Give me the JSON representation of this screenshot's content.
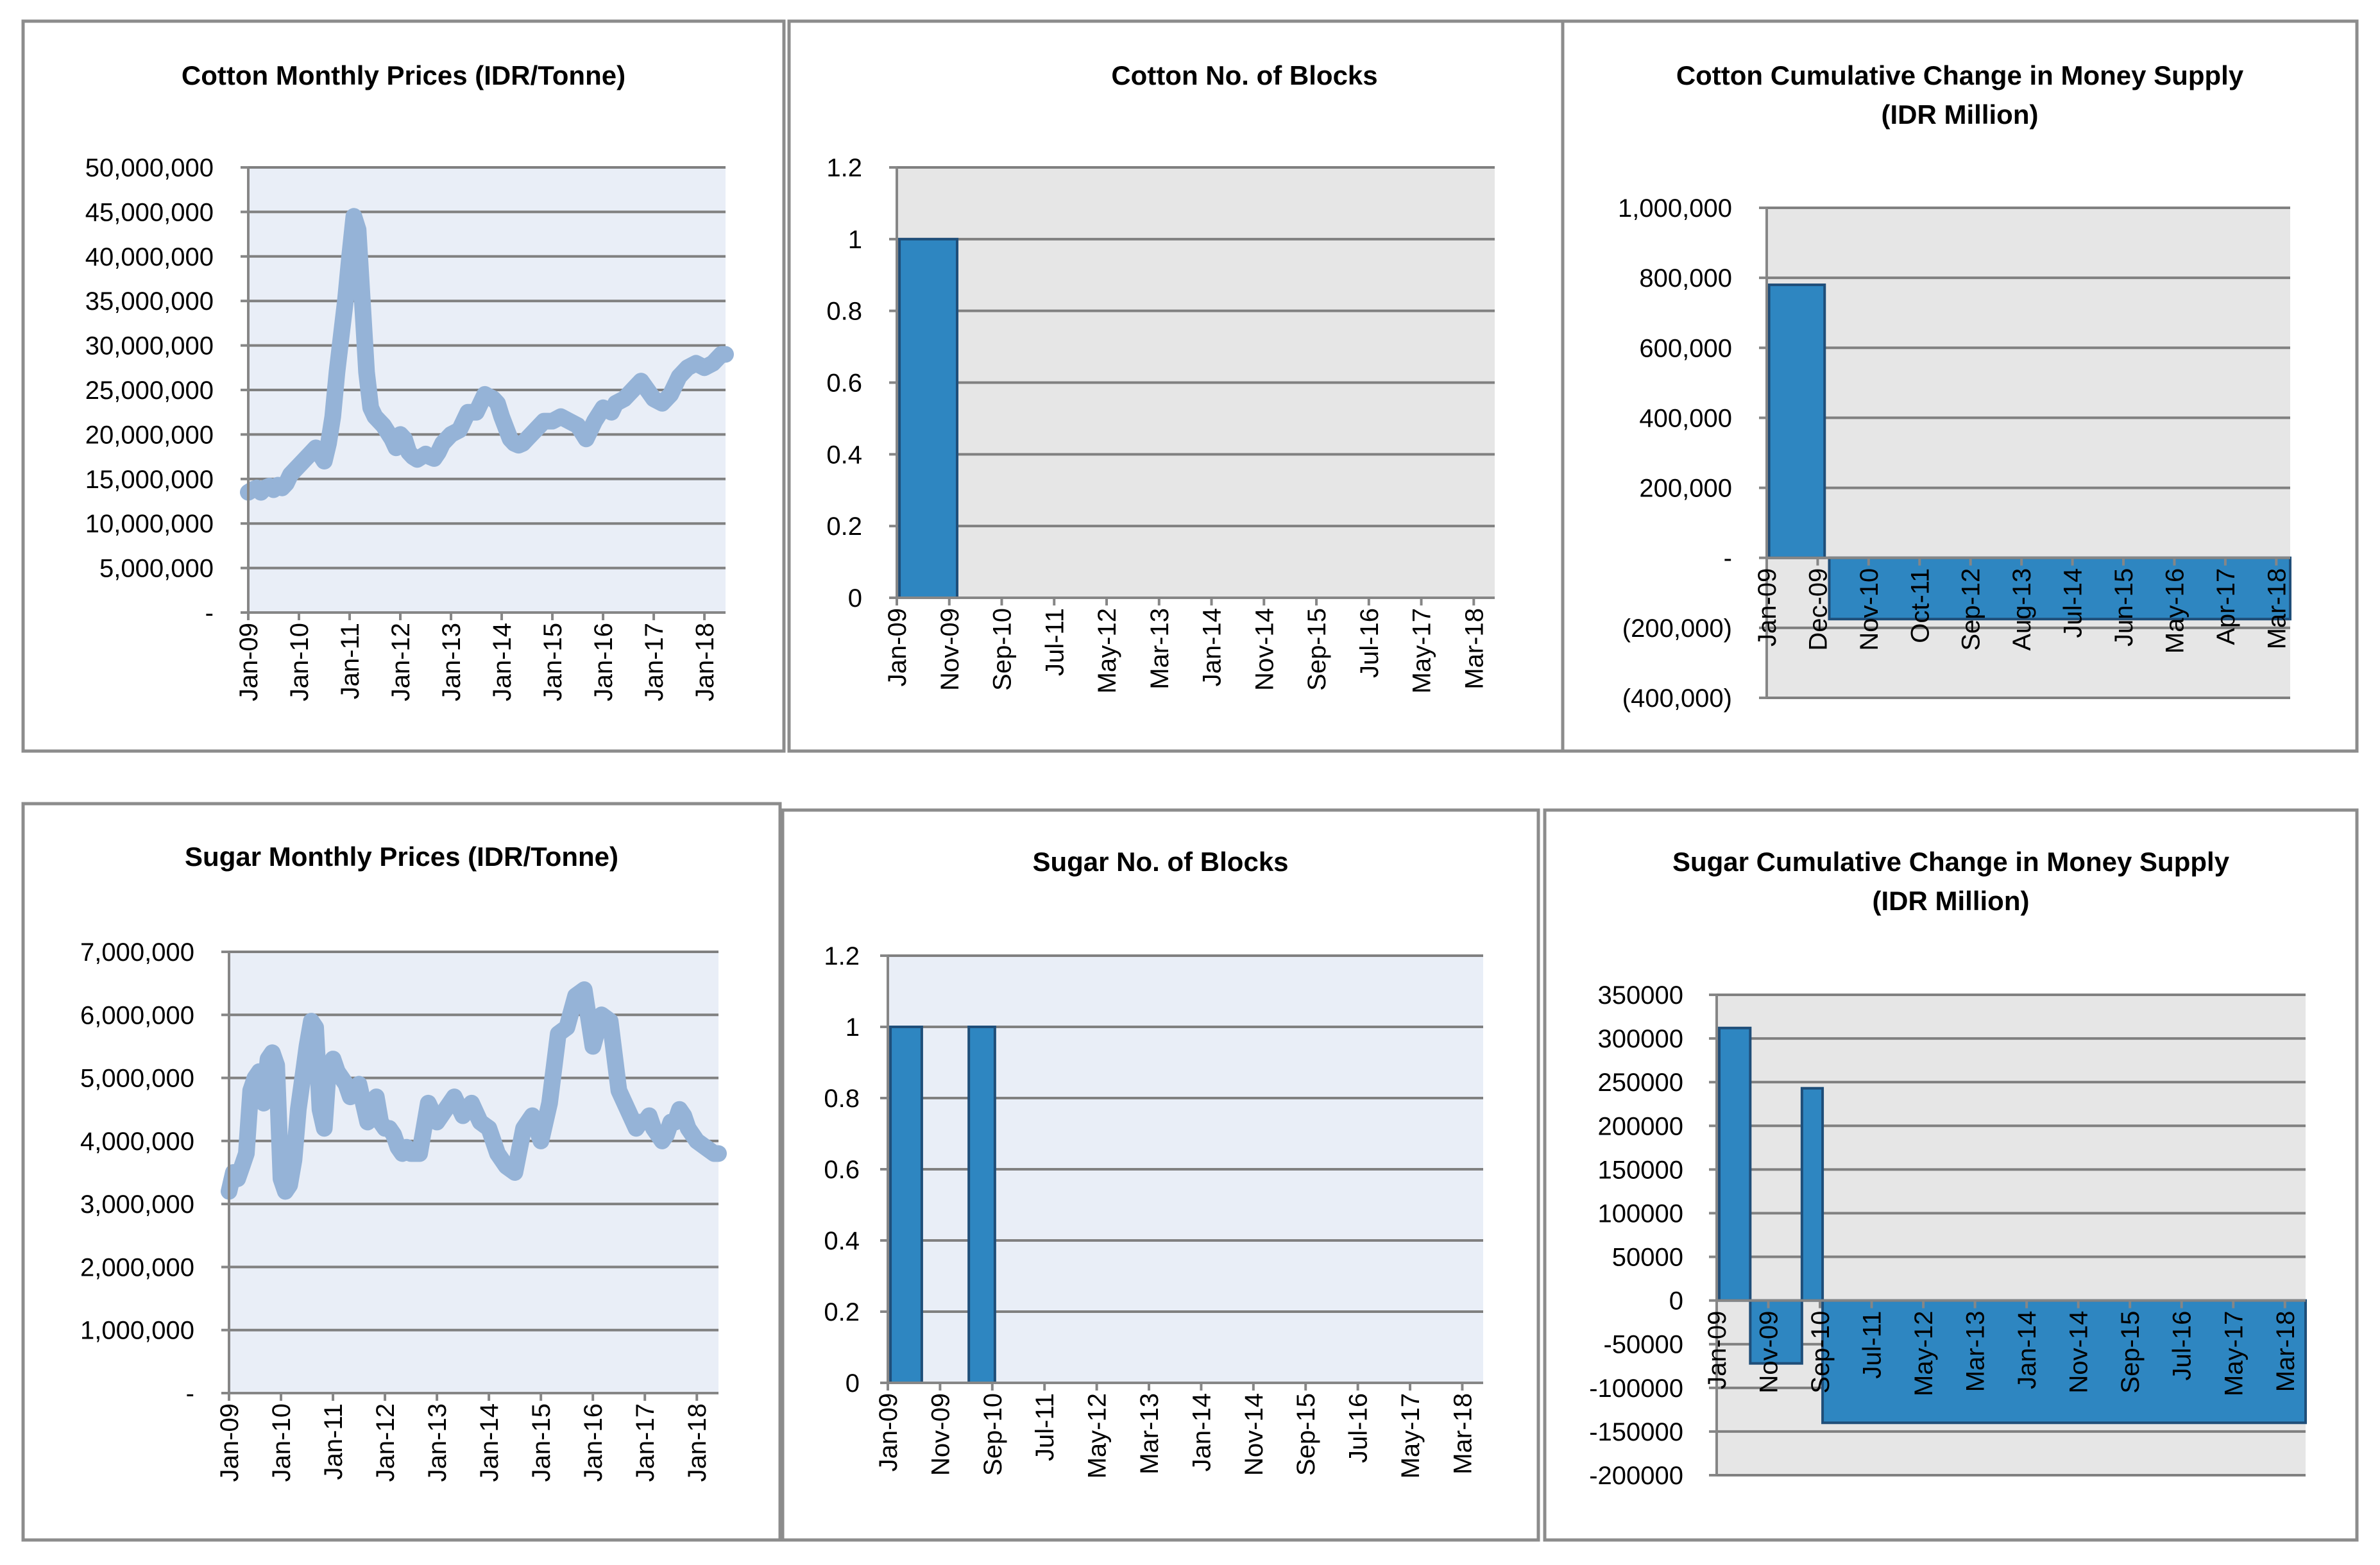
{
  "colors": {
    "line": "#95B3D7",
    "bar_fill": "#2E86C1",
    "bar_edge": "#1F4E79",
    "grid": "#808080",
    "axis": "#868686",
    "panel_border": "#8C8C8C",
    "plot_bg_light": "#E9EEF7",
    "plot_bg_grey": "#E6E6E6"
  },
  "chart_data": [
    {
      "id": "cotton-prices",
      "type": "line",
      "title": "Cotton Monthly Prices (IDR/Tonne)",
      "xlabel": "",
      "ylabel": "",
      "ylim": [
        0,
        50000000
      ],
      "yticks": [
        0,
        5000000,
        10000000,
        15000000,
        20000000,
        25000000,
        30000000,
        35000000,
        40000000,
        45000000,
        50000000
      ],
      "ytick_labels": [
        "-",
        "5,000,000",
        "10,000,000",
        "15,000,000",
        "20,000,000",
        "25,000,000",
        "30,000,000",
        "35,000,000",
        "40,000,000",
        "45,000,000",
        "50,000,000"
      ],
      "xlim": [
        0,
        113
      ],
      "xticks": [
        0,
        12,
        24,
        36,
        48,
        60,
        72,
        84,
        96,
        108
      ],
      "xtick_labels": [
        "Jan-09",
        "Jan-10",
        "Jan-11",
        "Jan-12",
        "Jan-13",
        "Jan-14",
        "Jan-15",
        "Jan-16",
        "Jan-17",
        "Jan-18"
      ],
      "x": [
        0,
        1,
        2,
        3,
        4,
        5,
        6,
        7,
        8,
        9,
        10,
        11,
        12,
        14,
        16,
        18,
        19,
        20,
        21,
        22,
        23,
        24,
        25,
        26,
        27,
        28,
        29,
        30,
        32,
        34,
        35,
        36,
        37,
        38,
        39,
        40,
        42,
        43,
        44,
        45,
        46,
        48,
        50,
        51,
        52,
        54,
        56,
        58,
        59,
        60,
        62,
        63,
        64,
        65,
        66,
        68,
        70,
        72,
        74,
        76,
        78,
        80,
        82,
        84,
        86,
        87,
        89,
        91,
        93,
        96,
        98,
        100,
        102,
        104,
        106,
        108,
        110,
        112,
        113
      ],
      "values": [
        13500000,
        13800000,
        14000000,
        13500000,
        14000000,
        14200000,
        13800000,
        14300000,
        14000000,
        14500000,
        15500000,
        16000000,
        16500000,
        17500000,
        18500000,
        17000000,
        19000000,
        22000000,
        27000000,
        31000000,
        35000000,
        40000000,
        44500000,
        43000000,
        35000000,
        27000000,
        23000000,
        22000000,
        21000000,
        19500000,
        18500000,
        20000000,
        19500000,
        18000000,
        17500000,
        17200000,
        17800000,
        17500000,
        17300000,
        18000000,
        19000000,
        20000000,
        20500000,
        21500000,
        22500000,
        22500000,
        24500000,
        24000000,
        23500000,
        22000000,
        19500000,
        19000000,
        18800000,
        19000000,
        19500000,
        20500000,
        21500000,
        21500000,
        22000000,
        21500000,
        21000000,
        19500000,
        21500000,
        23000000,
        22500000,
        23500000,
        24000000,
        25000000,
        26000000,
        24000000,
        23500000,
        24500000,
        26500000,
        27500000,
        28000000,
        27500000,
        28000000,
        29000000,
        29000000
      ]
    },
    {
      "id": "cotton-blocks",
      "type": "bar",
      "title": "Cotton No. of Blocks",
      "xlabel": "",
      "ylabel": "",
      "ylim": [
        0,
        1.2
      ],
      "yticks": [
        0,
        0.2,
        0.4,
        0.6,
        0.8,
        1,
        1.2
      ],
      "ytick_labels": [
        "0",
        "0.2",
        "0.4",
        "0.6",
        "0.8",
        "1",
        "1.2"
      ],
      "xlim": [
        0,
        114
      ],
      "xticks": [
        0,
        10,
        20,
        30,
        40,
        50,
        60,
        70,
        80,
        90,
        100,
        110
      ],
      "xtick_labels": [
        "Jan-09",
        "Nov-09",
        "Sep-10",
        "Jul-11",
        "May-12",
        "Mar-13",
        "Jan-14",
        "Nov-14",
        "Sep-15",
        "Jul-16",
        "May-17",
        "Mar-18"
      ],
      "bars": [
        {
          "x0": 0.5,
          "x1": 11.5,
          "value": 1
        }
      ]
    },
    {
      "id": "cotton-money",
      "type": "bar",
      "title": "Cotton Cumulative Change in Money Supply",
      "subtitle": "(IDR Million)",
      "xlabel": "",
      "ylabel": "",
      "ylim": [
        -400000,
        1000000
      ],
      "yticks": [
        -400000,
        -200000,
        0,
        200000,
        400000,
        600000,
        800000,
        1000000
      ],
      "ytick_labels": [
        "(400,000)",
        "(200,000)",
        "-",
        "200,000",
        "400,000",
        "600,000",
        "800,000",
        "1,000,000"
      ],
      "xlim": [
        0,
        113
      ],
      "xticks": [
        0,
        11,
        22,
        33,
        44,
        55,
        66,
        77,
        88,
        99,
        110
      ],
      "xtick_labels": [
        "Jan-09",
        "Dec-09",
        "Nov-10",
        "Oct-11",
        "Sep-12",
        "Aug-13",
        "Jul-14",
        "Jun-15",
        "May-16",
        "Apr-17",
        "Mar-18"
      ],
      "bars": [
        {
          "x0": 0.5,
          "x1": 12.5,
          "value": 780000
        },
        {
          "x0": 13.5,
          "x1": 113,
          "value": -175000
        }
      ]
    },
    {
      "id": "sugar-prices",
      "type": "line",
      "title": "Sugar Monthly Prices (IDR/Tonne)",
      "xlabel": "",
      "ylabel": "",
      "ylim": [
        0,
        7000000
      ],
      "yticks": [
        0,
        1000000,
        2000000,
        3000000,
        4000000,
        5000000,
        6000000,
        7000000
      ],
      "ytick_labels": [
        "-",
        "1,000,000",
        "2,000,000",
        "3,000,000",
        "4,000,000",
        "5,000,000",
        "6,000,000",
        "7,000,000"
      ],
      "xlim": [
        0,
        113
      ],
      "xticks": [
        0,
        12,
        24,
        36,
        48,
        60,
        72,
        84,
        96,
        108
      ],
      "xtick_labels": [
        "Jan-09",
        "Jan-10",
        "Jan-11",
        "Jan-12",
        "Jan-13",
        "Jan-14",
        "Jan-15",
        "Jan-16",
        "Jan-17",
        "Jan-18"
      ],
      "x": [
        0,
        1,
        2,
        3,
        4,
        5,
        6,
        7,
        8,
        9,
        10,
        11,
        12,
        13,
        14,
        15,
        16,
        17,
        18,
        19,
        20,
        21,
        22,
        23,
        24,
        25,
        26,
        27,
        28,
        29,
        30,
        31,
        32,
        33,
        34,
        35,
        36,
        37,
        38,
        39,
        40,
        41,
        42,
        44,
        46,
        48,
        50,
        52,
        54,
        56,
        58,
        60,
        62,
        64,
        66,
        68,
        70,
        72,
        74,
        76,
        78,
        80,
        82,
        84,
        86,
        88,
        90,
        92,
        94,
        95,
        96,
        97,
        98,
        99,
        100,
        101,
        102,
        103,
        104,
        105,
        106,
        108,
        110,
        112,
        113
      ],
      "values": [
        3200000,
        3500000,
        3400000,
        3600000,
        3800000,
        4800000,
        5000000,
        5100000,
        4600000,
        5300000,
        5400000,
        5200000,
        3400000,
        3200000,
        3300000,
        3700000,
        4500000,
        5000000,
        5500000,
        5900000,
        5800000,
        4500000,
        4200000,
        5200000,
        5300000,
        5100000,
        5000000,
        4900000,
        4700000,
        4800000,
        4900000,
        4600000,
        4300000,
        4400000,
        4700000,
        4300000,
        4200000,
        4200000,
        4100000,
        3900000,
        3800000,
        3900000,
        3800000,
        3800000,
        4600000,
        4300000,
        4500000,
        4700000,
        4400000,
        4600000,
        4300000,
        4200000,
        3800000,
        3600000,
        3500000,
        4200000,
        4400000,
        4000000,
        4600000,
        5700000,
        5800000,
        6300000,
        6400000,
        5500000,
        6000000,
        5900000,
        4800000,
        4500000,
        4200000,
        4300000,
        4300000,
        4400000,
        4200000,
        4100000,
        4000000,
        4100000,
        4300000,
        4300000,
        4500000,
        4400000,
        4200000,
        4000000,
        3900000,
        3800000,
        3800000
      ]
    },
    {
      "id": "sugar-blocks",
      "type": "bar",
      "title": "Sugar No. of Blocks",
      "xlabel": "",
      "ylabel": "",
      "ylim": [
        0,
        1.2
      ],
      "yticks": [
        0,
        0.2,
        0.4,
        0.6,
        0.8,
        1,
        1.2
      ],
      "ytick_labels": [
        "0",
        "0.2",
        "0.4",
        "0.6",
        "0.8",
        "1",
        "1.2"
      ],
      "xlim": [
        0,
        114
      ],
      "xticks": [
        0,
        10,
        20,
        30,
        40,
        50,
        60,
        70,
        80,
        90,
        100,
        110
      ],
      "xtick_labels": [
        "Jan-09",
        "Nov-09",
        "Sep-10",
        "Jul-11",
        "May-12",
        "Mar-13",
        "Jan-14",
        "Nov-14",
        "Sep-15",
        "Jul-16",
        "May-17",
        "Mar-18"
      ],
      "bars": [
        {
          "x0": 0.5,
          "x1": 6.5,
          "value": 1
        },
        {
          "x0": 15.5,
          "x1": 20.5,
          "value": 1
        }
      ]
    },
    {
      "id": "sugar-money",
      "type": "bar",
      "title": "Sugar Cumulative Change in Money Supply",
      "subtitle": "(IDR Million)",
      "xlabel": "",
      "ylabel": "",
      "ylim": [
        -200000,
        350000
      ],
      "yticks": [
        -200000,
        -150000,
        -100000,
        -50000,
        0,
        50000,
        100000,
        150000,
        200000,
        250000,
        300000,
        350000
      ],
      "ytick_labels": [
        "-200000",
        "-150000",
        "-100000",
        "-50000",
        "0",
        "50000",
        "100000",
        "150000",
        "200000",
        "250000",
        "300000",
        "350000"
      ],
      "xlim": [
        0,
        114
      ],
      "xticks": [
        0,
        10,
        20,
        30,
        40,
        50,
        60,
        70,
        80,
        90,
        100,
        110
      ],
      "xtick_labels": [
        "Jan-09",
        "Nov-09",
        "Sep-10",
        "Jul-11",
        "May-12",
        "Mar-13",
        "Jan-14",
        "Nov-14",
        "Sep-15",
        "Jul-16",
        "May-17",
        "Mar-18"
      ],
      "bars": [
        {
          "x0": 0.5,
          "x1": 6.5,
          "value": 312000
        },
        {
          "x0": 6.5,
          "x1": 16.5,
          "value": -72000
        },
        {
          "x0": 16.5,
          "x1": 20.5,
          "value": 243000
        },
        {
          "x0": 20.5,
          "x1": 114,
          "value": -140000
        }
      ]
    }
  ]
}
